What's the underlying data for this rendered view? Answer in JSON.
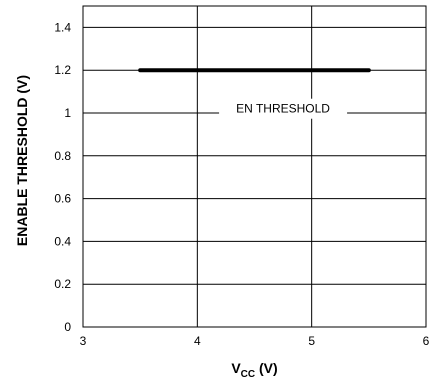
{
  "chart_data": {
    "type": "line",
    "xlabel": "V",
    "xlabel_sub": "CC",
    "xlabel_unit": " (V)",
    "ylabel": "ENABLE THRESHOLD (V)",
    "xlim": [
      3,
      6
    ],
    "ylim": [
      0,
      1.5
    ],
    "x_ticks": [
      3,
      4,
      5,
      6
    ],
    "x_tick_labels": [
      "3",
      "4",
      "5",
      "6"
    ],
    "y_ticks": [
      0,
      0.2,
      0.4,
      0.6,
      0.8,
      1,
      1.2,
      1.4
    ],
    "y_tick_labels": [
      "0",
      "0.2",
      "0.4",
      "0.6",
      "0.8",
      "1",
      "1.2",
      "1.4"
    ],
    "grid": true,
    "series": [
      {
        "x": [
          3.5,
          5.5
        ],
        "y": [
          1.2,
          1.2
        ],
        "color": "#000000"
      }
    ],
    "annotations": [
      {
        "text": "EN THRESHOLD",
        "x": 4.75,
        "y": 1.02
      }
    ]
  }
}
